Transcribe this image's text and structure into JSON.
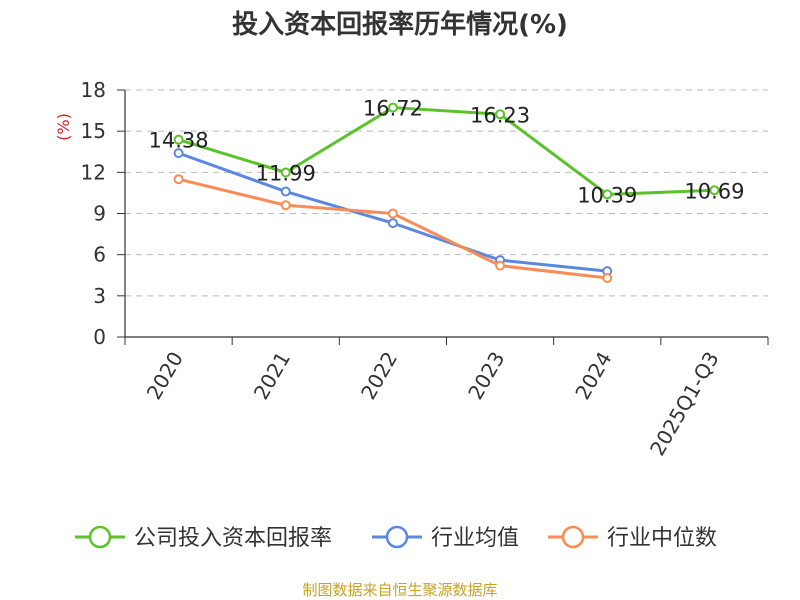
{
  "chart_data": {
    "type": "line",
    "title": "投入资本回报率历年情况(%)",
    "ylabel": "(%)",
    "xlabel": "",
    "categories": [
      "2020",
      "2021",
      "2022",
      "2023",
      "2024",
      "2025Q1-Q3"
    ],
    "ylim": [
      0,
      18
    ],
    "yticks": [
      0,
      3,
      6,
      9,
      12,
      15,
      18
    ],
    "grid": true,
    "legend_position": "bottom",
    "series": [
      {
        "name": "公司投入资本回报率",
        "color": "#5cc22b",
        "values": [
          14.38,
          11.99,
          16.72,
          16.23,
          10.39,
          10.69
        ],
        "data_labels": [
          "14.38",
          "11.99",
          "16.72",
          "16.23",
          "10.39",
          "10.69"
        ]
      },
      {
        "name": "行业均值",
        "color": "#5b87e0",
        "values": [
          13.4,
          10.6,
          8.3,
          5.6,
          4.8,
          null
        ]
      },
      {
        "name": "行业中位数",
        "color": "#f98c56",
        "values": [
          11.5,
          9.6,
          9.0,
          5.2,
          4.3,
          null
        ]
      }
    ]
  },
  "colors": {
    "ylabel": "#d42020",
    "source": "#c9a227",
    "grid": "#bbbbbb",
    "axis": "#333333"
  },
  "source": "制图数据来自恒生聚源数据库"
}
